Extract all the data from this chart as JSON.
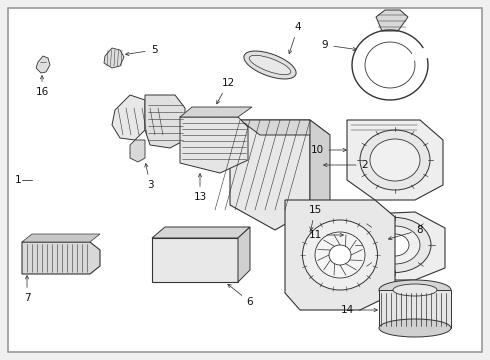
{
  "background_color": "#f0f0f0",
  "border_color": "#999999",
  "line_color": "#333333",
  "text_color": "#111111",
  "fig_width": 4.9,
  "fig_height": 3.6,
  "dpi": 100,
  "label_fontsize": 7.5,
  "border_lw": 1.2
}
